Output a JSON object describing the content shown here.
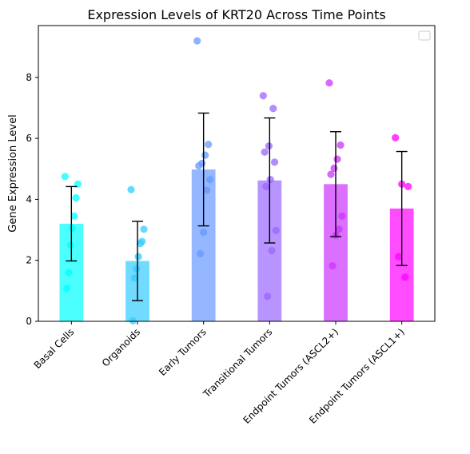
{
  "chart_data": {
    "type": "bar",
    "title": "Expression Levels of KRT20 Across Time Points",
    "xlabel": "",
    "ylabel": "Gene Expression Level",
    "ylim": [
      0,
      9.7
    ],
    "yticks": [
      0,
      2,
      4,
      6,
      8
    ],
    "grid": false,
    "legend": {
      "placement": "upper right",
      "entries": []
    },
    "categories": [
      "Basal Cells",
      "Organoids",
      "Early Tumors",
      "Transitional Tumors",
      "Endpoint Tumors (ASCL2+)",
      "Endpoint Tumors (ASCL1+)"
    ],
    "colors": [
      "#00ffff",
      "#33ccff",
      "#6699ff",
      "#9966ff",
      "#cc33ff",
      "#ff00ff"
    ],
    "bar_opacity": 0.7,
    "point_opacity": 0.75,
    "values": [
      3.2,
      1.98,
      4.98,
      4.62,
      4.5,
      3.7
    ],
    "errors": [
      1.22,
      1.3,
      1.85,
      2.05,
      1.72,
      1.87
    ],
    "points": [
      [
        4.75,
        4.5,
        4.05,
        3.45,
        3.05,
        2.5,
        1.6,
        1.08
      ],
      [
        4.32,
        3.02,
        2.62,
        2.55,
        2.12,
        1.72,
        1.42,
        0.02
      ],
      [
        9.2,
        5.8,
        5.45,
        5.18,
        5.1,
        4.65,
        4.3,
        2.92,
        2.22
      ],
      [
        7.4,
        6.98,
        5.75,
        5.55,
        5.22,
        4.65,
        4.42,
        2.98,
        2.32,
        0.82
      ],
      [
        7.82,
        5.78,
        5.32,
        5.02,
        4.82,
        3.45,
        3.02,
        2.82,
        1.82
      ],
      [
        6.02,
        4.5,
        4.42,
        2.12,
        1.45
      ]
    ]
  }
}
